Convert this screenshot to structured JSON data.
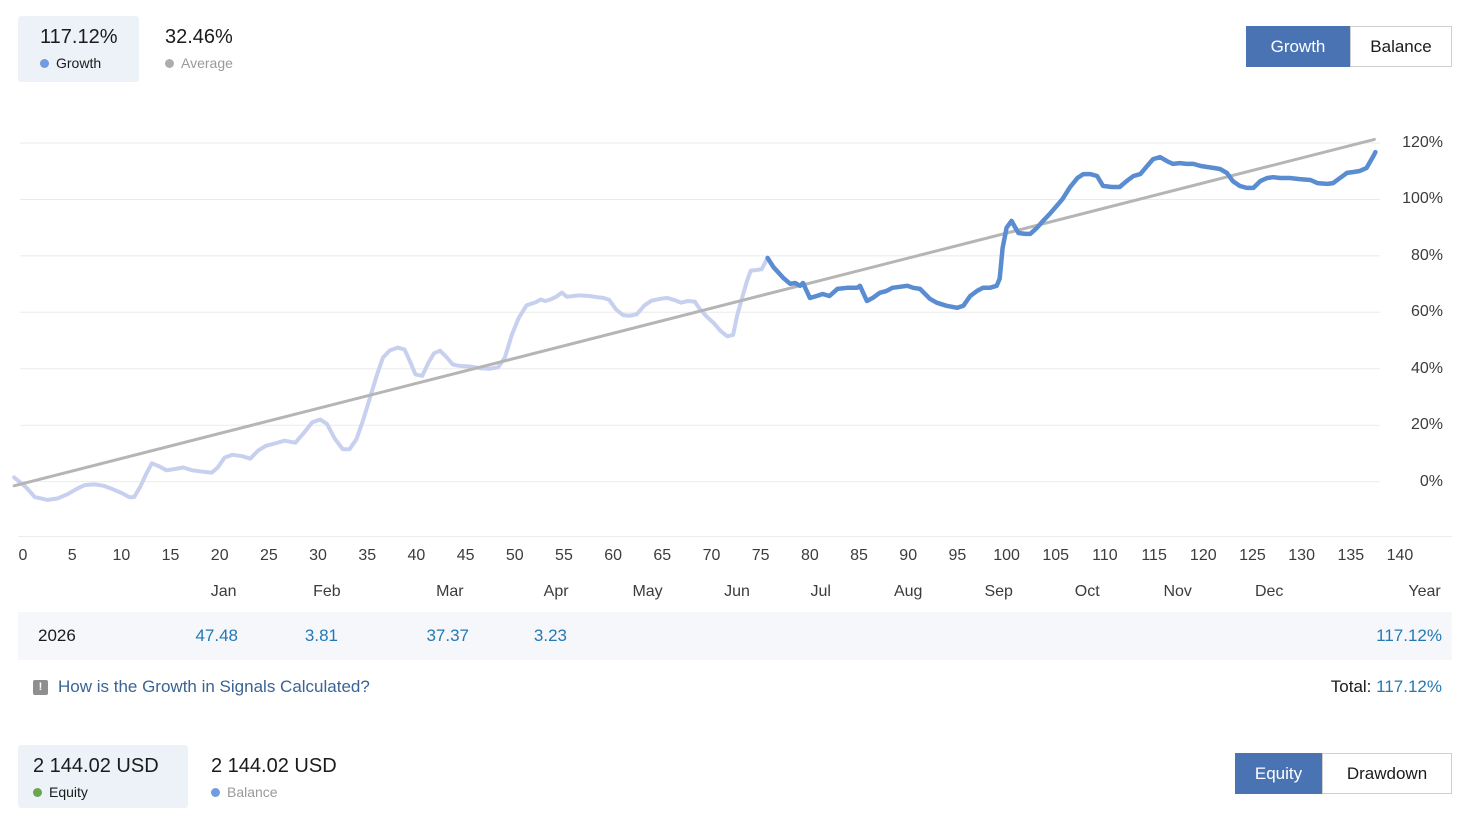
{
  "header": {
    "growth_stat": {
      "value": "117.12%",
      "label": "Growth"
    },
    "average_stat": {
      "value": "32.46%",
      "label": "Average"
    },
    "toggle": {
      "growth": "Growth",
      "balance": "Balance"
    }
  },
  "chart_data": {
    "type": "line",
    "title": "Signal growth chart",
    "x_axis": {
      "range": [
        0,
        140
      ],
      "ticks": [
        0,
        5,
        10,
        15,
        20,
        25,
        30,
        35,
        40,
        45,
        50,
        55,
        60,
        65,
        70,
        75,
        80,
        85,
        90,
        95,
        100,
        105,
        110,
        115,
        120,
        125,
        130,
        135,
        140
      ]
    },
    "y_axis": {
      "unit": "%",
      "ticks": [
        0,
        20,
        40,
        60,
        80,
        100,
        120
      ],
      "range": [
        -8,
        125
      ]
    },
    "months": [
      {
        "label": "Jan",
        "u": 20.4
      },
      {
        "label": "Feb",
        "u": 30.9
      },
      {
        "label": "Mar",
        "u": 43.4
      },
      {
        "label": "Apr",
        "u": 54.2
      },
      {
        "label": "May",
        "u": 63.5
      },
      {
        "label": "Jun",
        "u": 72.6
      },
      {
        "label": "Jul",
        "u": 81.1
      },
      {
        "label": "Aug",
        "u": 90.0
      },
      {
        "label": "Sep",
        "u": 99.2
      },
      {
        "label": "Oct",
        "u": 108.2
      },
      {
        "label": "Nov",
        "u": 117.4
      },
      {
        "label": "Dec",
        "u": 126.7
      },
      {
        "label": "Year",
        "u": 142.5
      }
    ],
    "grid": "horizontal-only",
    "legend_position": "top-left",
    "series": [
      {
        "name": "growth-history",
        "color": "#c7d0ee",
        "points": [
          [
            -0.9,
            1.5
          ],
          [
            0.3,
            -2
          ],
          [
            1.2,
            -5.5
          ],
          [
            2.5,
            -6.5
          ],
          [
            3.5,
            -6
          ],
          [
            4.5,
            -4.5
          ],
          [
            5.5,
            -2.5
          ],
          [
            6.3,
            -1.2
          ],
          [
            7.3,
            -1
          ],
          [
            8.2,
            -1.5
          ],
          [
            9,
            -2.5
          ],
          [
            10,
            -4
          ],
          [
            10.8,
            -5.5
          ],
          [
            11.3,
            -5.5
          ],
          [
            11.9,
            -2
          ],
          [
            12.5,
            2.5
          ],
          [
            13.1,
            6.5
          ],
          [
            13.8,
            5.5
          ],
          [
            14.6,
            4
          ],
          [
            15.5,
            4.5
          ],
          [
            16.3,
            5
          ],
          [
            17.2,
            4
          ],
          [
            18.3,
            3.5
          ],
          [
            19.2,
            3.2
          ],
          [
            19.8,
            5
          ],
          [
            20.5,
            8.5
          ],
          [
            21.3,
            9.5
          ],
          [
            22.3,
            9
          ],
          [
            23.1,
            8.1
          ],
          [
            23.9,
            11
          ],
          [
            24.7,
            12.7
          ],
          [
            25.6,
            13.5
          ],
          [
            26.6,
            14.5
          ],
          [
            27.7,
            13.8
          ],
          [
            28.5,
            17
          ],
          [
            29.4,
            21
          ],
          [
            30.2,
            22
          ],
          [
            30.9,
            20.5
          ],
          [
            31.7,
            15.2
          ],
          [
            32.5,
            11.5
          ],
          [
            33.2,
            11.5
          ],
          [
            33.9,
            15
          ],
          [
            34.6,
            22
          ],
          [
            35.3,
            30
          ],
          [
            36,
            38
          ],
          [
            36.6,
            44
          ],
          [
            37.3,
            46.5
          ],
          [
            38.1,
            47.5
          ],
          [
            38.8,
            46.8
          ],
          [
            39.3,
            43
          ],
          [
            39.9,
            38
          ],
          [
            40.6,
            37.5
          ],
          [
            41.2,
            42
          ],
          [
            41.8,
            45.5
          ],
          [
            42.4,
            46.4
          ],
          [
            43.1,
            44
          ],
          [
            43.7,
            41.5
          ],
          [
            44.4,
            41
          ],
          [
            45.4,
            40.8
          ],
          [
            46.5,
            40.2
          ],
          [
            47.5,
            40
          ],
          [
            48.3,
            40.5
          ],
          [
            49,
            44
          ],
          [
            49.7,
            52
          ],
          [
            50.4,
            58
          ],
          [
            51.2,
            62.5
          ],
          [
            52.1,
            63.5
          ],
          [
            52.6,
            64.5
          ],
          [
            53.1,
            64
          ],
          [
            53.6,
            64.5
          ],
          [
            54.2,
            65.5
          ],
          [
            54.8,
            67
          ],
          [
            55.3,
            65.5
          ],
          [
            55.9,
            65.8
          ],
          [
            56.6,
            66
          ],
          [
            57.6,
            65.8
          ],
          [
            58.5,
            65.3
          ],
          [
            59,
            65.1
          ],
          [
            59.6,
            64.4
          ],
          [
            60.3,
            61
          ],
          [
            61,
            59
          ],
          [
            61.7,
            58.8
          ],
          [
            62.4,
            59.3
          ],
          [
            63.2,
            62.5
          ],
          [
            63.9,
            64.1
          ],
          [
            64.8,
            64.8
          ],
          [
            65.5,
            65.1
          ],
          [
            66.2,
            64.4
          ],
          [
            66.9,
            63.4
          ],
          [
            67.6,
            64
          ],
          [
            68.3,
            63.8
          ],
          [
            68.8,
            61.2
          ],
          [
            69.5,
            58.5
          ],
          [
            70.2,
            56.3
          ],
          [
            70.9,
            53.5
          ],
          [
            71.6,
            51.5
          ],
          [
            72.2,
            52
          ],
          [
            72.6,
            58.8
          ],
          [
            73.1,
            65
          ],
          [
            73.6,
            71
          ],
          [
            74,
            74.8
          ],
          [
            74.6,
            75
          ],
          [
            75.1,
            75.3
          ],
          [
            75.7,
            79.3
          ]
        ]
      },
      {
        "name": "average-trend",
        "color": "#b5b5b5",
        "points": [
          [
            -0.9,
            -1.5
          ],
          [
            137.4,
            121.3
          ]
        ]
      },
      {
        "name": "growth-live",
        "color": "#5a8cd2",
        "points": [
          [
            75.7,
            79.3
          ],
          [
            76.3,
            76
          ],
          [
            77.3,
            72.2
          ],
          [
            78,
            70.1
          ],
          [
            78.5,
            70.4
          ],
          [
            79,
            69.4
          ],
          [
            79.3,
            70.4
          ],
          [
            80,
            65.1
          ],
          [
            80.7,
            65.8
          ],
          [
            81.3,
            66.5
          ],
          [
            82,
            65.8
          ],
          [
            82.8,
            68.3
          ],
          [
            83.8,
            68.7
          ],
          [
            84.8,
            68.7
          ],
          [
            85.1,
            69.4
          ],
          [
            85.8,
            64
          ],
          [
            86.4,
            65.1
          ],
          [
            87.1,
            66.9
          ],
          [
            87.8,
            67.6
          ],
          [
            88.4,
            68.7
          ],
          [
            89.9,
            69.4
          ],
          [
            90.5,
            68.7
          ],
          [
            91.2,
            68.3
          ],
          [
            92.2,
            64.8
          ],
          [
            92.9,
            63.4
          ],
          [
            93.9,
            62.3
          ],
          [
            95,
            61.6
          ],
          [
            95.6,
            62.3
          ],
          [
            96.3,
            65.8
          ],
          [
            97,
            67.6
          ],
          [
            97.6,
            68.7
          ],
          [
            98.3,
            68.7
          ],
          [
            99,
            69.4
          ],
          [
            99.3,
            72
          ],
          [
            99.6,
            82.8
          ],
          [
            100,
            90
          ],
          [
            100.5,
            92.4
          ],
          [
            101.2,
            88.1
          ],
          [
            101.9,
            87.8
          ],
          [
            102.4,
            87.8
          ],
          [
            103.1,
            90
          ],
          [
            103.7,
            92.4
          ],
          [
            104.4,
            94.9
          ],
          [
            105.1,
            97.7
          ],
          [
            105.7,
            100.2
          ],
          [
            106.4,
            104.1
          ],
          [
            107.2,
            107.6
          ],
          [
            107.8,
            109
          ],
          [
            108.5,
            109
          ],
          [
            109.2,
            108.3
          ],
          [
            109.8,
            104.8
          ],
          [
            110.7,
            104.4
          ],
          [
            111.5,
            104.4
          ],
          [
            112.2,
            106.5
          ],
          [
            112.9,
            108.3
          ],
          [
            113.6,
            109
          ],
          [
            114.3,
            111.9
          ],
          [
            114.9,
            114.3
          ],
          [
            115.6,
            115
          ],
          [
            116.3,
            113.6
          ],
          [
            116.9,
            112.6
          ],
          [
            117.6,
            112.9
          ],
          [
            118.3,
            112.6
          ],
          [
            119,
            112.6
          ],
          [
            119.7,
            111.9
          ],
          [
            120.4,
            111.5
          ],
          [
            121,
            111.2
          ],
          [
            121.7,
            110.8
          ],
          [
            122.4,
            109.4
          ],
          [
            123,
            106.5
          ],
          [
            123.7,
            104.8
          ],
          [
            124.4,
            104.1
          ],
          [
            125.1,
            104.1
          ],
          [
            125.8,
            106.5
          ],
          [
            126.5,
            107.6
          ],
          [
            127.1,
            107.9
          ],
          [
            127.8,
            107.6
          ],
          [
            128.8,
            107.6
          ],
          [
            129.8,
            107.2
          ],
          [
            130.9,
            106.9
          ],
          [
            131.6,
            105.8
          ],
          [
            132.6,
            105.5
          ],
          [
            133.2,
            105.8
          ],
          [
            133.9,
            107.6
          ],
          [
            134.6,
            109.4
          ],
          [
            135.2,
            109.7
          ],
          [
            135.9,
            110.1
          ],
          [
            136.6,
            111.2
          ],
          [
            137.3,
            115.4
          ],
          [
            137.5,
            116.8
          ]
        ]
      }
    ]
  },
  "table": {
    "year": "2026",
    "values": [
      "47.48",
      "3.81",
      "37.37",
      "3.23"
    ],
    "total": "117.12%"
  },
  "footer": {
    "icon_glyph": "!",
    "question_link": "How is the Growth in Signals Calculated?",
    "total_label": "Total:",
    "total_value": "117.12%"
  },
  "bottom": {
    "equity_stat": {
      "value": "2 144.02 USD",
      "label": "Equity"
    },
    "balance_stat": {
      "value": "2 144.02 USD",
      "label": "Balance"
    },
    "toggle": {
      "equity": "Equity",
      "drawdown": "Drawdown"
    }
  },
  "colors": {
    "accent_button": "#4a73b3",
    "growth_dot": "#6f9be0",
    "average_dot": "#adadad",
    "equity_dot": "#68a74d",
    "balance_dot": "#6f9be0",
    "selected_card_bg": "#edf1f8",
    "table_row_bg": "#f5f7fa",
    "value_blue": "#2478b4",
    "link_blue": "#3a6493",
    "grid_line": "#ebebeb"
  }
}
